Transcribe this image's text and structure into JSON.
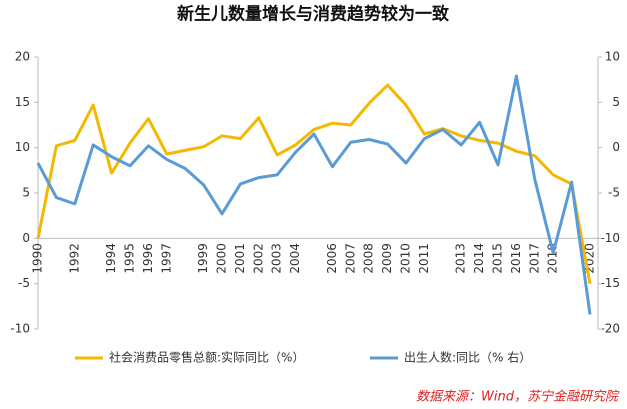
{
  "chart_data": {
    "type": "line",
    "title": "新生儿数量增长与消费趋势较为一致",
    "categories": [
      "1990",
      null,
      "1992",
      null,
      "1994",
      "1995",
      "1996",
      "1997",
      null,
      "1999",
      "2000",
      "2001",
      "2002",
      "2003",
      "2004",
      null,
      "2006",
      "2007",
      "2008",
      "2009",
      "2010",
      "2011",
      null,
      "2013",
      "2014",
      "2015",
      "2016",
      "2017",
      "2018",
      null,
      "2020"
    ],
    "series": [
      {
        "name": "社会消费品零售总额:实际同比（%）",
        "color": "#f5b800",
        "values": [
          0,
          10.2,
          10.8,
          14.7,
          7.2,
          10.5,
          13.2,
          9.3,
          9.7,
          10.1,
          11.3,
          11.0,
          13.3,
          9.2,
          10.3,
          12.0,
          12.7,
          12.5,
          14.9,
          16.9,
          14.7,
          11.5,
          12.1,
          11.3,
          10.8,
          10.5,
          9.6,
          9.1,
          7.0,
          6.0,
          -5
        ]
      },
      {
        "name": "出生人数:同比（% 右）",
        "color": "#5b9bd5",
        "axis": "y2",
        "values": [
          -1.7,
          -5.5,
          -6.2,
          0.3,
          -1,
          -2,
          0.2,
          -1.3,
          -2.3,
          -4.1,
          -7.3,
          -4,
          -3.3,
          -3,
          -0.5,
          1.5,
          -2.1,
          0.6,
          0.9,
          0.4,
          -1.7,
          1,
          2,
          0.3,
          2.8,
          -1.9,
          7.9,
          -3.5,
          -11.6,
          -3.8,
          -18.4
        ]
      }
    ],
    "ylim": [
      -10,
      20
    ],
    "yticks": [
      -10,
      -5,
      0,
      5,
      10,
      15,
      20
    ],
    "y2lim": [
      -20,
      10
    ],
    "y2ticks": [
      -20,
      -15,
      -10,
      -5,
      0,
      5,
      10
    ],
    "source": "数据来源：Wind，苏宁金融研究院"
  }
}
